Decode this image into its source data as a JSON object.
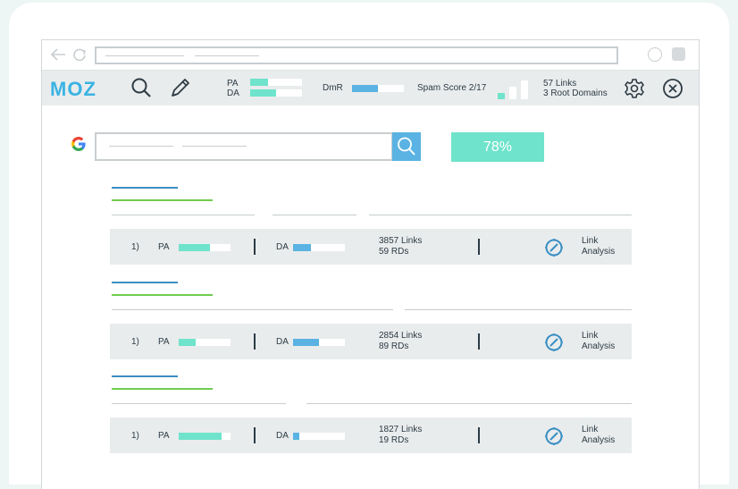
{
  "mozbar": {
    "logo": "MOZ",
    "pa_label": "PA",
    "da_label": "DA",
    "pa_fill": 0.35,
    "da_fill": 0.5,
    "dmr_label": "DmR",
    "dmr_fill": 0.5,
    "spam_score": "Spam Score 2/17",
    "links": "57 Links",
    "root_domains": "3 Root Domains"
  },
  "search": {
    "score": "78%"
  },
  "results": [
    {
      "rank": "1)",
      "pa_label": "PA",
      "da_label": "DA",
      "pa_fill": 0.6,
      "da_fill": 0.35,
      "links": "3857 Links",
      "rds": "59 RDs",
      "link_analysis_1": "Link",
      "link_analysis_2": "Analysis"
    },
    {
      "rank": "1)",
      "pa_label": "PA",
      "da_label": "DA",
      "pa_fill": 0.33,
      "da_fill": 0.5,
      "links": "2854 Links",
      "rds": "89 RDs",
      "link_analysis_1": "Link",
      "link_analysis_2": "Analysis"
    },
    {
      "rank": "1)",
      "pa_label": "PA",
      "da_label": "DA",
      "pa_fill": 0.82,
      "da_fill": 0.12,
      "links": "1827 Links",
      "rds": "19 RDs",
      "link_analysis_1": "Link",
      "link_analysis_2": "Analysis"
    }
  ],
  "colors": {
    "teal": "#6fe3cb",
    "blue": "#5ab3e2",
    "green": "#6fcd4f",
    "moz_blue": "#3ab3e3"
  },
  "icons": [
    "back-arrow-icon",
    "reload-icon",
    "search-icon",
    "pencil-icon",
    "gear-icon",
    "close-icon",
    "google-icon",
    "compass-icon"
  ]
}
